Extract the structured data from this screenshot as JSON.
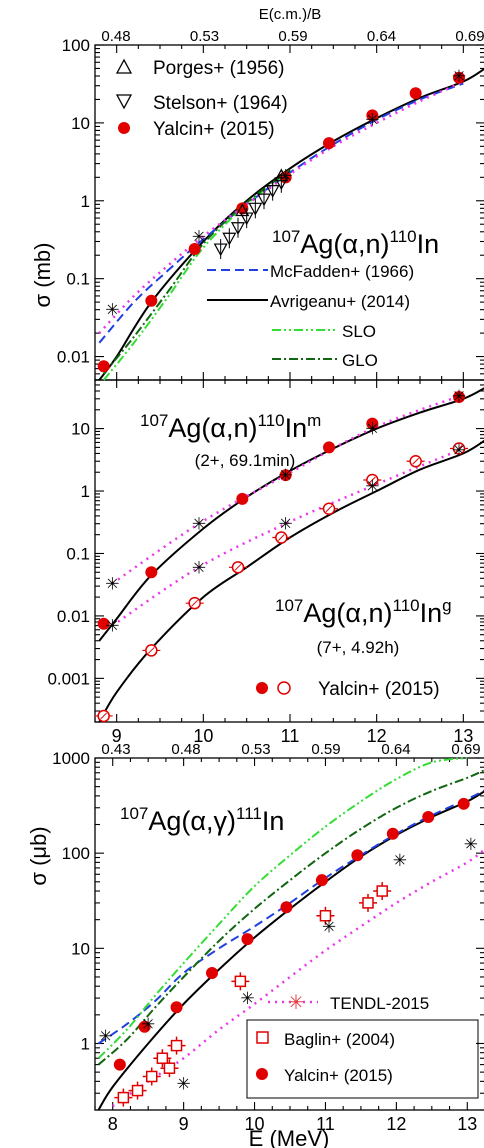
{
  "chart_data": [
    {
      "type": "scatter",
      "panel": "a",
      "title_pre": "107",
      "title_mid": "Ag(α,n)",
      "title_sup2": "110",
      "title_post": "In",
      "top_axis_label": "E(c.m.)/B",
      "top_ticks": [
        "0.48",
        "0.53",
        "0.59",
        "0.64",
        "0.69"
      ],
      "ylabel": "σ (mb)",
      "yscale": "log",
      "ylim": [
        0.005,
        100
      ],
      "xlim": [
        8.75,
        13.25
      ],
      "ytick_labels": [
        "0.01",
        "0.1",
        "1",
        "10",
        "100"
      ],
      "legend_exp": [
        "Porges+ (1956)",
        "Stelson+ (1964)",
        "Yalcin+ (2015)"
      ],
      "legend_calc": [
        "McFadden+ (1966)",
        "Avrigeanu+ (2014)",
        "SLO",
        "GLO"
      ],
      "series": [
        {
          "name": "Yalcin+ (2015)",
          "style": "filled-circle",
          "x": [
            8.85,
            9.4,
            9.9,
            10.45,
            10.95,
            11.45,
            11.95,
            12.45,
            12.95
          ],
          "y": [
            0.0075,
            0.052,
            0.24,
            0.8,
            2.0,
            5.5,
            12.5,
            24,
            38
          ]
        },
        {
          "name": "Stelson+ (1964)",
          "style": "down-triangle",
          "x": [
            10.2,
            10.3,
            10.4,
            10.5,
            10.6,
            10.7,
            10.8,
            10.9
          ],
          "y": [
            0.24,
            0.33,
            0.45,
            0.6,
            0.8,
            1.05,
            1.35,
            1.7
          ]
        },
        {
          "name": "Porges+ (1956)",
          "style": "up-triangle",
          "x": [
            10.45,
            10.9
          ],
          "y": [
            0.75,
            2.1
          ]
        },
        {
          "name": "TENDL-2015",
          "style": "star",
          "x": [
            8.95,
            9.95,
            10.95,
            11.95,
            12.95
          ],
          "y": [
            0.04,
            0.35,
            2.1,
            11,
            40
          ]
        },
        {
          "name": "Avrigeanu+ (2014)",
          "style": "solid",
          "x": [
            8.8,
            9.0,
            9.4,
            10.0,
            10.5,
            11.0,
            11.5,
            12.0,
            12.5,
            13.0,
            13.25
          ],
          "y": [
            0.005,
            0.01,
            0.05,
            0.3,
            1.0,
            2.6,
            5.8,
            11.5,
            21,
            34,
            50
          ]
        },
        {
          "name": "McFadden+ (1966)",
          "style": "dashed",
          "x": [
            8.8,
            9.2,
            9.6,
            10.0,
            10.5,
            11.0,
            11.5,
            12.0,
            12.5,
            13.0
          ],
          "y": [
            0.015,
            0.05,
            0.13,
            0.32,
            0.9,
            2.3,
            5.3,
            11,
            20,
            32
          ]
        },
        {
          "name": "SLO",
          "style": "dash-dot-dot",
          "x": [
            8.85,
            9.2,
            9.6,
            10.0,
            10.5,
            11.0
          ],
          "y": [
            0.005,
            0.015,
            0.06,
            0.25,
            0.9,
            2.4
          ]
        },
        {
          "name": "GLO",
          "style": "dash-dot",
          "x": [
            8.85,
            9.2,
            9.6,
            10.0,
            10.5,
            11.0
          ],
          "y": [
            0.006,
            0.018,
            0.07,
            0.28,
            0.95,
            2.5
          ]
        },
        {
          "name": "TENDL-2015",
          "style": "dotted",
          "x": [
            8.8,
            9.2,
            9.6,
            10.0,
            10.5,
            11.0,
            11.5,
            12.0,
            12.5,
            13.0
          ],
          "y": [
            0.02,
            0.06,
            0.15,
            0.35,
            0.9,
            2.2,
            5,
            10,
            19,
            34
          ]
        }
      ]
    },
    {
      "type": "scatter",
      "panel": "b",
      "m_title_pre": "107",
      "m_title_mid": "Ag(α,n)",
      "m_title_sup2": "110",
      "m_title_post": "In",
      "m_title_sup3": "m",
      "m_subtitle": "(2+, 69.1min)",
      "g_title_sup3": "g",
      "g_subtitle": "(7+, 4.92h)",
      "legend": "Yalcin+ (2015)",
      "yscale": "log",
      "ylim": [
        0.0002,
        60
      ],
      "xlim": [
        8.75,
        13.25
      ],
      "ytick_labels": [
        "0.001",
        "0.01",
        "0.1",
        "1",
        "10"
      ],
      "xtick_labels": [
        "9",
        "10",
        "11",
        "12",
        "13"
      ],
      "series": [
        {
          "name": "110In m (exp)",
          "style": "filled-circle",
          "x": [
            8.85,
            9.4,
            10.45,
            10.95,
            11.45,
            11.95,
            12.95
          ],
          "y": [
            0.0075,
            0.05,
            0.75,
            1.8,
            5.0,
            12.0,
            32
          ]
        },
        {
          "name": "110In g (exp)",
          "style": "open-circle",
          "x": [
            8.85,
            9.4,
            9.9,
            10.4,
            10.9,
            11.45,
            11.95,
            12.45,
            12.95
          ],
          "y": [
            0.00025,
            0.0028,
            0.016,
            0.06,
            0.18,
            0.52,
            1.5,
            3.0,
            4.8
          ]
        },
        {
          "name": "110In m (calc)",
          "style": "solid",
          "x": [
            8.8,
            9.0,
            9.4,
            10.0,
            10.5,
            11.0,
            11.5,
            12.0,
            12.5,
            13.0,
            13.25
          ],
          "y": [
            0.004,
            0.009,
            0.045,
            0.25,
            0.8,
            2.1,
            4.8,
            10,
            18,
            30,
            45
          ]
        },
        {
          "name": "110In g (calc)",
          "style": "solid",
          "x": [
            8.8,
            9.0,
            9.4,
            10.0,
            10.5,
            11.0,
            11.5,
            12.0,
            12.5,
            13.0,
            13.25
          ],
          "y": [
            0.0002,
            0.0006,
            0.003,
            0.02,
            0.06,
            0.18,
            0.45,
            1.0,
            2.2,
            4.0,
            6.5
          ]
        },
        {
          "name": "TENDL m",
          "style": "star-dotted",
          "x": [
            8.95,
            9.95,
            10.95,
            11.95,
            12.95
          ],
          "y": [
            0.033,
            0.3,
            1.8,
            10,
            33
          ]
        },
        {
          "name": "TENDL g",
          "style": "star-dotted",
          "x": [
            8.95,
            9.95,
            10.95,
            11.95,
            12.95
          ],
          "y": [
            0.007,
            0.06,
            0.3,
            1.2,
            4.5
          ]
        }
      ]
    },
    {
      "type": "scatter",
      "panel": "c",
      "title_pre": "107",
      "title_mid": "Ag(α,γ)",
      "title_sup2": "111",
      "title_post": "In",
      "top_ticks": [
        "0.43",
        "0.48",
        "0.53",
        "0.59",
        "0.64",
        "0.69"
      ],
      "xlabel": "E (MeV)",
      "ylabel": "σ (μb)",
      "yscale": "log",
      "ylim": [
        0.2,
        1000
      ],
      "xlim": [
        7.75,
        13.25
      ],
      "ytick_labels": [
        "1",
        "10",
        "100",
        "1000"
      ],
      "xtick_labels": [
        "8",
        "9",
        "10",
        "11",
        "12",
        "13"
      ],
      "legend": [
        "TENDL-2015",
        "Baglin+ (2004)",
        "Yalcin+ (2015)"
      ],
      "series": [
        {
          "name": "Yalcin+ (2015)",
          "style": "filled-circle",
          "x": [
            8.1,
            8.45,
            8.9,
            9.4,
            9.9,
            10.45,
            10.95,
            11.45,
            11.95,
            12.45,
            12.95
          ],
          "y": [
            0.6,
            1.5,
            2.4,
            5.5,
            12.5,
            27,
            52,
            95,
            160,
            240,
            330
          ]
        },
        {
          "name": "Baglin+ (2004)",
          "style": "open-square",
          "x": [
            8.15,
            8.35,
            8.55,
            8.7,
            8.8,
            8.9,
            9.8,
            11.0,
            11.6,
            11.8
          ],
          "y": [
            0.27,
            0.32,
            0.45,
            0.7,
            0.55,
            0.95,
            4.5,
            22,
            30,
            40
          ]
        },
        {
          "name": "TENDL-2015",
          "style": "star",
          "x": [
            7.9,
            8.5,
            9.0,
            9.9,
            11.05,
            12.05,
            13.05
          ],
          "y": [
            1.2,
            1.6,
            0.38,
            3.0,
            17,
            85,
            125
          ]
        },
        {
          "name": "Avrigeanu+ (2014)",
          "style": "solid",
          "x": [
            7.8,
            8.0,
            8.5,
            9.0,
            9.5,
            10.0,
            10.5,
            11.0,
            11.5,
            12.0,
            12.5,
            13.0,
            13.25
          ],
          "y": [
            0.2,
            0.35,
            1.0,
            2.6,
            6.0,
            13,
            26,
            50,
            92,
            155,
            240,
            350,
            450
          ]
        },
        {
          "name": "McFadden+ (1966)",
          "style": "dashed",
          "x": [
            7.8,
            8.2,
            8.6,
            9.0,
            9.5,
            10.0,
            10.5,
            11.0,
            11.5,
            12.0,
            12.5,
            13.0,
            13.25
          ],
          "y": [
            1.0,
            1.6,
            2.8,
            5.5,
            10,
            17,
            30,
            55,
            95,
            160,
            250,
            370,
            460
          ]
        },
        {
          "name": "SLO",
          "style": "dash-dot-dot",
          "x": [
            7.8,
            8.2,
            8.6,
            9.0,
            9.5,
            10.0,
            10.5,
            11.0,
            11.5,
            12.0,
            12.5,
            13.0
          ],
          "y": [
            0.7,
            1.4,
            3.2,
            7.0,
            18,
            45,
            95,
            190,
            350,
            600,
            900,
            1000
          ]
        },
        {
          "name": "GLO",
          "style": "dash-dot",
          "x": [
            7.8,
            8.2,
            8.6,
            9.0,
            9.5,
            10.0,
            10.5,
            11.0,
            11.5,
            12.0,
            12.5,
            13.0,
            13.25
          ],
          "y": [
            0.6,
            1.1,
            2.4,
            5.0,
            12,
            26,
            52,
            100,
            180,
            300,
            450,
            620,
            750
          ]
        },
        {
          "name": "TENDL-2015",
          "style": "dotted",
          "x": [
            8.0,
            8.5,
            9.0,
            9.5,
            10.0,
            10.5,
            11.0,
            11.5,
            12.0,
            12.5,
            13.0,
            13.25
          ],
          "y": [
            0.22,
            0.4,
            0.7,
            1.4,
            2.6,
            5,
            9.5,
            17,
            30,
            50,
            80,
            110
          ]
        }
      ]
    }
  ]
}
